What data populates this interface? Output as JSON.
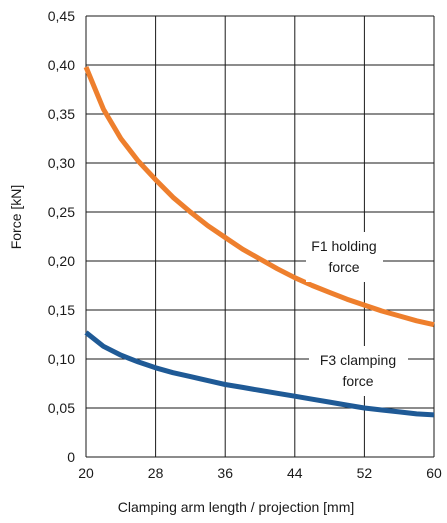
{
  "chart_data": {
    "type": "line",
    "title": "",
    "xlabel": "Clamping arm length / projection [mm]",
    "ylabel": "Force [kN]",
    "xlim": [
      20,
      60
    ],
    "ylim": [
      0,
      0.45
    ],
    "x_ticks": [
      20,
      28,
      36,
      44,
      52,
      60
    ],
    "y_ticks": [
      0,
      0.05,
      0.1,
      0.15,
      0.2,
      0.25,
      0.3,
      0.35,
      0.4,
      0.45
    ],
    "x_tick_labels": [
      "20",
      "28",
      "36",
      "44",
      "52",
      "60"
    ],
    "y_tick_labels": [
      "0",
      "0,05",
      "0,10",
      "0,15",
      "0,20",
      "0,25",
      "0,30",
      "0,35",
      "0,40",
      "0,45"
    ],
    "grid": true,
    "series": [
      {
        "name": "F1 holding force",
        "color": "#ee7f2d",
        "x": [
          20,
          22,
          24,
          26,
          28,
          30,
          32,
          34,
          36,
          38,
          40,
          42,
          44,
          46,
          48,
          50,
          52,
          54,
          56,
          58,
          60
        ],
        "y": [
          0.398,
          0.355,
          0.325,
          0.302,
          0.283,
          0.265,
          0.25,
          0.236,
          0.224,
          0.212,
          0.202,
          0.192,
          0.183,
          0.175,
          0.168,
          0.161,
          0.155,
          0.149,
          0.144,
          0.139,
          0.135
        ]
      },
      {
        "name": "F3 clamping force",
        "color": "#1f5a96",
        "x": [
          20,
          22,
          24,
          26,
          28,
          30,
          32,
          34,
          36,
          38,
          40,
          42,
          44,
          46,
          48,
          50,
          52,
          54,
          56,
          58,
          60
        ],
        "y": [
          0.127,
          0.113,
          0.104,
          0.097,
          0.091,
          0.086,
          0.082,
          0.078,
          0.074,
          0.071,
          0.068,
          0.065,
          0.062,
          0.059,
          0.056,
          0.053,
          0.05,
          0.048,
          0.046,
          0.044,
          0.043
        ]
      }
    ],
    "annotations": [
      {
        "lines": [
          "F1 holding",
          "force"
        ],
        "series": "F1 holding force"
      },
      {
        "lines": [
          "F3 clamping",
          "force"
        ],
        "series": "F3 clamping force"
      }
    ]
  }
}
